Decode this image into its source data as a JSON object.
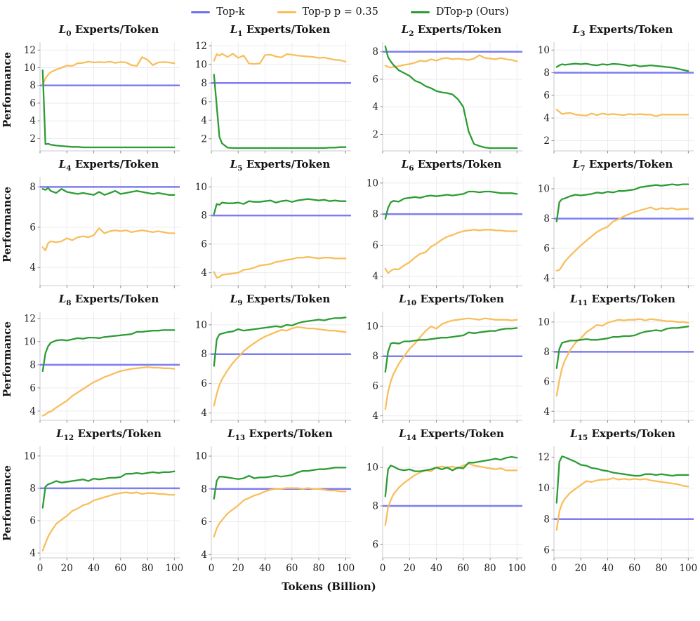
{
  "legend": {
    "items": [
      {
        "label": "Top-k",
        "series": "topk"
      },
      {
        "label": "Top-p p = 0.35",
        "series": "topp"
      },
      {
        "label": "DTop-p (Ours)",
        "series": "dtopp"
      }
    ]
  },
  "chart_data": {
    "type": "line",
    "grid": true,
    "title_prefix": "L",
    "title_suffix": "Experts/Token",
    "xlabel": "Tokens (Billion)",
    "ylabel": "Performance",
    "xticks": [
      0,
      20,
      40,
      60,
      80,
      100
    ],
    "xlim": [
      0,
      104
    ],
    "colors": {
      "topk": "#7070ef",
      "topp": "#f9be5c",
      "dtopp": "#2d9c34"
    },
    "grid_color": "#ebebf1",
    "spine_color": "#c9c9d3",
    "x": [
      2,
      4,
      6,
      8,
      12,
      16,
      20,
      24,
      28,
      32,
      36,
      40,
      44,
      48,
      52,
      56,
      60,
      64,
      68,
      72,
      76,
      80,
      84,
      88,
      92,
      96,
      100
    ],
    "subplots": [
      {
        "layer": 0,
        "ylim": [
          0.6,
          12.9
        ],
        "yticks": [
          2,
          4,
          6,
          8,
          10,
          12
        ],
        "topk": 8,
        "dtopp": [
          9.7,
          1.35,
          1.4,
          1.3,
          1.2,
          1.15,
          1.1,
          1.05,
          1.05,
          1.0,
          1.0,
          1.0,
          1.0,
          1.0,
          1.0,
          1.0,
          1.0,
          1.0,
          1.0,
          1.0,
          1.0,
          1.0,
          1.0,
          1.0,
          1.0,
          1.0,
          1.0
        ],
        "topp": [
          8.0,
          8.8,
          9.2,
          9.5,
          9.8,
          10.0,
          10.25,
          10.2,
          10.5,
          10.55,
          10.7,
          10.6,
          10.65,
          10.6,
          10.7,
          10.55,
          10.65,
          10.6,
          10.3,
          10.2,
          11.2,
          10.9,
          10.3,
          10.6,
          10.65,
          10.6,
          10.5
        ]
      },
      {
        "layer": 1,
        "ylim": [
          0.7,
          12.4
        ],
        "yticks": [
          2,
          4,
          6,
          8,
          10,
          12
        ],
        "topk": 8,
        "dtopp": [
          8.9,
          5.5,
          2.2,
          1.5,
          1.05,
          1.0,
          1.0,
          1.0,
          1.0,
          1.0,
          1.0,
          1.0,
          1.0,
          1.0,
          1.0,
          1.0,
          1.0,
          1.0,
          1.0,
          1.0,
          1.0,
          1.0,
          1.0,
          1.05,
          1.05,
          1.1,
          1.1
        ],
        "topp": [
          10.4,
          11.1,
          10.95,
          11.15,
          10.8,
          11.15,
          10.7,
          10.95,
          10.1,
          10.05,
          10.1,
          11.0,
          11.05,
          10.85,
          10.75,
          11.1,
          11.05,
          10.95,
          10.9,
          10.85,
          10.8,
          10.7,
          10.75,
          10.6,
          10.5,
          10.45,
          10.3
        ]
      },
      {
        "layer": 2,
        "ylim": [
          0.8,
          8.7
        ],
        "yticks": [
          2,
          4,
          6,
          8
        ],
        "topk": 8,
        "dtopp": [
          8.4,
          7.6,
          7.3,
          7.05,
          6.65,
          6.45,
          6.25,
          5.9,
          5.75,
          5.5,
          5.35,
          5.15,
          5.05,
          5.0,
          4.9,
          4.55,
          4.0,
          2.2,
          1.3,
          1.15,
          1.05,
          1.0,
          1.0,
          1.0,
          1.0,
          1.0,
          1.0
        ],
        "topp": [
          7.0,
          6.9,
          6.85,
          6.9,
          6.95,
          7.05,
          7.1,
          7.2,
          7.35,
          7.3,
          7.45,
          7.35,
          7.5,
          7.55,
          7.45,
          7.5,
          7.45,
          7.4,
          7.5,
          7.75,
          7.55,
          7.5,
          7.45,
          7.55,
          7.45,
          7.4,
          7.3
        ]
      },
      {
        "layer": 3,
        "ylim": [
          1.1,
          10.7
        ],
        "yticks": [
          2,
          4,
          6,
          8,
          10
        ],
        "topk": 8,
        "dtopp": [
          8.5,
          8.65,
          8.75,
          8.7,
          8.75,
          8.8,
          8.75,
          8.8,
          8.7,
          8.65,
          8.75,
          8.7,
          8.78,
          8.75,
          8.7,
          8.6,
          8.68,
          8.55,
          8.6,
          8.65,
          8.6,
          8.55,
          8.5,
          8.45,
          8.35,
          8.25,
          8.15
        ],
        "topp": [
          4.75,
          4.55,
          4.35,
          4.4,
          4.45,
          4.3,
          4.25,
          4.2,
          4.4,
          4.25,
          4.4,
          4.3,
          4.35,
          4.3,
          4.25,
          4.35,
          4.3,
          4.35,
          4.3,
          4.3,
          4.15,
          4.3,
          4.3,
          4.3,
          4.3,
          4.3,
          4.3
        ]
      },
      {
        "layer": 4,
        "ylim": [
          3.1,
          8.5
        ],
        "yticks": [
          4,
          6,
          8
        ],
        "topk": 8,
        "dtopp": [
          7.9,
          7.85,
          7.95,
          7.8,
          7.7,
          7.9,
          7.75,
          7.7,
          7.65,
          7.7,
          7.65,
          7.6,
          7.75,
          7.6,
          7.7,
          7.8,
          7.65,
          7.7,
          7.75,
          7.8,
          7.75,
          7.7,
          7.65,
          7.7,
          7.65,
          7.6,
          7.6
        ],
        "topp": [
          5.0,
          4.85,
          5.2,
          5.3,
          5.25,
          5.3,
          5.45,
          5.35,
          5.5,
          5.55,
          5.5,
          5.6,
          5.95,
          5.7,
          5.8,
          5.85,
          5.8,
          5.85,
          5.75,
          5.8,
          5.85,
          5.8,
          5.75,
          5.8,
          5.75,
          5.7,
          5.7
        ]
      },
      {
        "layer": 5,
        "ylim": [
          3.1,
          10.7
        ],
        "yticks": [
          4,
          6,
          8,
          10
        ],
        "topk": 8,
        "dtopp": [
          8.1,
          8.8,
          8.75,
          8.9,
          8.85,
          8.85,
          8.9,
          8.8,
          9.0,
          8.95,
          8.95,
          9.0,
          9.05,
          8.9,
          9.0,
          9.05,
          8.95,
          9.05,
          9.1,
          9.15,
          9.1,
          9.05,
          9.1,
          9.0,
          9.05,
          9.0,
          9.0
        ],
        "topp": [
          4.05,
          3.65,
          3.7,
          3.85,
          3.9,
          3.95,
          4.0,
          4.2,
          4.25,
          4.35,
          4.5,
          4.55,
          4.6,
          4.75,
          4.8,
          4.9,
          4.95,
          5.05,
          5.05,
          5.1,
          5.05,
          5.0,
          5.05,
          5.05,
          5.0,
          5.0,
          5.0
        ]
      },
      {
        "layer": 6,
        "ylim": [
          3.4,
          10.4
        ],
        "yticks": [
          4,
          6,
          8,
          10
        ],
        "topk": 8,
        "dtopp": [
          7.7,
          8.4,
          8.75,
          8.85,
          8.8,
          9.0,
          9.05,
          9.1,
          9.05,
          9.15,
          9.2,
          9.15,
          9.2,
          9.25,
          9.2,
          9.25,
          9.3,
          9.45,
          9.45,
          9.4,
          9.45,
          9.45,
          9.4,
          9.35,
          9.35,
          9.35,
          9.3
        ],
        "topp": [
          4.5,
          4.2,
          4.35,
          4.45,
          4.45,
          4.7,
          4.9,
          5.2,
          5.45,
          5.55,
          5.9,
          6.1,
          6.35,
          6.55,
          6.65,
          6.8,
          6.9,
          6.95,
          7.0,
          6.95,
          7.0,
          7.0,
          6.95,
          6.95,
          6.9,
          6.9,
          6.9
        ]
      },
      {
        "layer": 7,
        "ylim": [
          3.5,
          10.8
        ],
        "yticks": [
          4,
          6,
          8,
          10
        ],
        "topk": 8,
        "dtopp": [
          7.8,
          9.1,
          9.3,
          9.35,
          9.5,
          9.6,
          9.55,
          9.6,
          9.65,
          9.75,
          9.7,
          9.8,
          9.75,
          9.85,
          9.85,
          9.9,
          9.95,
          10.1,
          10.15,
          10.2,
          10.25,
          10.2,
          10.25,
          10.3,
          10.25,
          10.3,
          10.3
        ],
        "topp": [
          4.5,
          4.55,
          4.8,
          5.1,
          5.5,
          5.85,
          6.2,
          6.5,
          6.8,
          7.1,
          7.3,
          7.45,
          7.8,
          7.95,
          8.15,
          8.3,
          8.45,
          8.55,
          8.65,
          8.75,
          8.6,
          8.7,
          8.65,
          8.7,
          8.6,
          8.65,
          8.65
        ]
      },
      {
        "layer": 8,
        "ylim": [
          3.2,
          12.6
        ],
        "yticks": [
          4,
          6,
          8,
          10,
          12
        ],
        "topk": 8,
        "dtopp": [
          7.45,
          9.0,
          9.6,
          9.9,
          10.1,
          10.15,
          10.1,
          10.2,
          10.3,
          10.25,
          10.35,
          10.35,
          10.3,
          10.4,
          10.45,
          10.5,
          10.55,
          10.6,
          10.65,
          10.85,
          10.85,
          10.9,
          10.95,
          10.95,
          11.0,
          11.0,
          11.0
        ],
        "topp": [
          3.6,
          3.7,
          3.9,
          3.95,
          4.3,
          4.6,
          4.9,
          5.3,
          5.6,
          5.9,
          6.2,
          6.5,
          6.7,
          6.95,
          7.1,
          7.3,
          7.45,
          7.55,
          7.65,
          7.7,
          7.75,
          7.8,
          7.75,
          7.75,
          7.7,
          7.7,
          7.65
        ]
      },
      {
        "layer": 9,
        "ylim": [
          3.5,
          10.9
        ],
        "yticks": [
          4,
          6,
          8,
          10
        ],
        "topk": 8,
        "dtopp": [
          7.2,
          9.0,
          9.35,
          9.4,
          9.5,
          9.55,
          9.7,
          9.6,
          9.65,
          9.7,
          9.75,
          9.8,
          9.85,
          9.9,
          9.85,
          10.0,
          9.95,
          10.1,
          10.2,
          10.25,
          10.3,
          10.35,
          10.3,
          10.4,
          10.45,
          10.45,
          10.5
        ],
        "topp": [
          4.5,
          5.3,
          5.9,
          6.3,
          6.9,
          7.4,
          7.8,
          8.2,
          8.5,
          8.75,
          9.0,
          9.2,
          9.35,
          9.5,
          9.65,
          9.6,
          9.75,
          9.85,
          9.8,
          9.75,
          9.75,
          9.7,
          9.65,
          9.6,
          9.6,
          9.55,
          9.5
        ]
      },
      {
        "layer": 10,
        "ylim": [
          3.7,
          11.0
        ],
        "yticks": [
          4,
          6,
          8,
          10
        ],
        "topk": 8,
        "dtopp": [
          6.95,
          8.3,
          8.85,
          8.9,
          8.85,
          9.0,
          9.0,
          9.05,
          9.1,
          9.1,
          9.15,
          9.2,
          9.25,
          9.25,
          9.3,
          9.35,
          9.4,
          9.6,
          9.55,
          9.6,
          9.65,
          9.7,
          9.7,
          9.8,
          9.85,
          9.85,
          9.9
        ],
        "topp": [
          4.45,
          5.6,
          6.3,
          6.8,
          7.5,
          8.0,
          8.5,
          8.85,
          9.3,
          9.7,
          10.0,
          9.85,
          10.15,
          10.3,
          10.4,
          10.45,
          10.5,
          10.55,
          10.5,
          10.45,
          10.55,
          10.5,
          10.45,
          10.45,
          10.45,
          10.4,
          10.45
        ]
      },
      {
        "layer": 11,
        "ylim": [
          3.4,
          10.7
        ],
        "yticks": [
          4,
          6,
          8,
          10
        ],
        "topk": 8,
        "dtopp": [
          6.9,
          8.2,
          8.6,
          8.65,
          8.75,
          8.75,
          8.8,
          8.85,
          8.8,
          8.8,
          8.85,
          8.9,
          9.0,
          9.0,
          9.05,
          9.05,
          9.1,
          9.25,
          9.35,
          9.4,
          9.45,
          9.4,
          9.55,
          9.6,
          9.6,
          9.65,
          9.7
        ],
        "topp": [
          5.05,
          6.1,
          6.9,
          7.4,
          8.1,
          8.6,
          8.9,
          9.3,
          9.55,
          9.8,
          9.75,
          9.95,
          10.05,
          10.15,
          10.1,
          10.15,
          10.15,
          10.2,
          10.1,
          10.2,
          10.15,
          10.1,
          10.05,
          10.05,
          10.0,
          10.0,
          9.95
        ]
      },
      {
        "layer": 12,
        "ylim": [
          3.7,
          10.6
        ],
        "yticks": [
          4,
          6,
          8,
          10
        ],
        "topk": 8,
        "dtopp": [
          6.8,
          8.1,
          8.25,
          8.3,
          8.45,
          8.35,
          8.4,
          8.45,
          8.5,
          8.55,
          8.45,
          8.6,
          8.55,
          8.6,
          8.65,
          8.65,
          8.7,
          8.9,
          8.9,
          8.95,
          8.9,
          8.95,
          9.0,
          8.95,
          9.0,
          9.0,
          9.05
        ],
        "topp": [
          4.15,
          4.6,
          5.0,
          5.3,
          5.8,
          6.05,
          6.3,
          6.6,
          6.75,
          6.95,
          7.05,
          7.25,
          7.35,
          7.45,
          7.55,
          7.65,
          7.7,
          7.75,
          7.7,
          7.75,
          7.65,
          7.7,
          7.7,
          7.65,
          7.65,
          7.6,
          7.6
        ]
      },
      {
        "layer": 13,
        "ylim": [
          3.8,
          10.6
        ],
        "yticks": [
          4,
          6,
          8,
          10
        ],
        "topk": 8,
        "dtopp": [
          7.4,
          8.5,
          8.75,
          8.75,
          8.7,
          8.65,
          8.6,
          8.65,
          8.8,
          8.65,
          8.7,
          8.7,
          8.75,
          8.8,
          8.75,
          8.8,
          8.85,
          9.0,
          9.1,
          9.1,
          9.15,
          9.2,
          9.2,
          9.25,
          9.3,
          9.3,
          9.3
        ],
        "topp": [
          5.1,
          5.6,
          5.9,
          6.1,
          6.5,
          6.75,
          7.0,
          7.3,
          7.45,
          7.6,
          7.7,
          7.85,
          7.95,
          8.0,
          8.0,
          8.05,
          8.05,
          8.05,
          8.0,
          8.05,
          8.0,
          8.0,
          7.95,
          7.9,
          7.9,
          7.85,
          7.85
        ]
      },
      {
        "layer": 14,
        "ylim": [
          5.3,
          11.1
        ],
        "yticks": [
          6,
          8,
          10
        ],
        "topk": 8,
        "dtopp": [
          8.5,
          9.9,
          10.1,
          10.05,
          9.9,
          9.85,
          9.9,
          9.8,
          9.8,
          9.85,
          9.9,
          10.0,
          9.9,
          10.0,
          9.85,
          10.0,
          9.95,
          10.25,
          10.25,
          10.3,
          10.35,
          10.4,
          10.45,
          10.4,
          10.5,
          10.55,
          10.5
        ],
        "topp": [
          7.0,
          7.9,
          8.3,
          8.6,
          8.95,
          9.2,
          9.4,
          9.6,
          9.75,
          9.85,
          9.8,
          10.0,
          10.05,
          10.0,
          10.05,
          9.95,
          10.1,
          10.2,
          10.1,
          10.05,
          10.0,
          9.95,
          9.9,
          9.95,
          9.85,
          9.85,
          9.85
        ]
      },
      {
        "layer": 15,
        "ylim": [
          5.5,
          12.7
        ],
        "yticks": [
          6,
          8,
          10,
          12
        ],
        "topk": 8,
        "dtopp": [
          9.05,
          11.7,
          12.05,
          12.0,
          11.85,
          11.7,
          11.5,
          11.45,
          11.3,
          11.25,
          11.15,
          11.1,
          11.0,
          10.95,
          10.9,
          10.85,
          10.8,
          10.8,
          10.9,
          10.9,
          10.85,
          10.9,
          10.85,
          10.8,
          10.85,
          10.85,
          10.85
        ],
        "topp": [
          7.3,
          8.5,
          9.0,
          9.3,
          9.7,
          9.95,
          10.2,
          10.45,
          10.4,
          10.5,
          10.55,
          10.55,
          10.65,
          10.55,
          10.6,
          10.55,
          10.6,
          10.55,
          10.6,
          10.5,
          10.45,
          10.4,
          10.35,
          10.3,
          10.25,
          10.15,
          10.1
        ]
      }
    ]
  }
}
